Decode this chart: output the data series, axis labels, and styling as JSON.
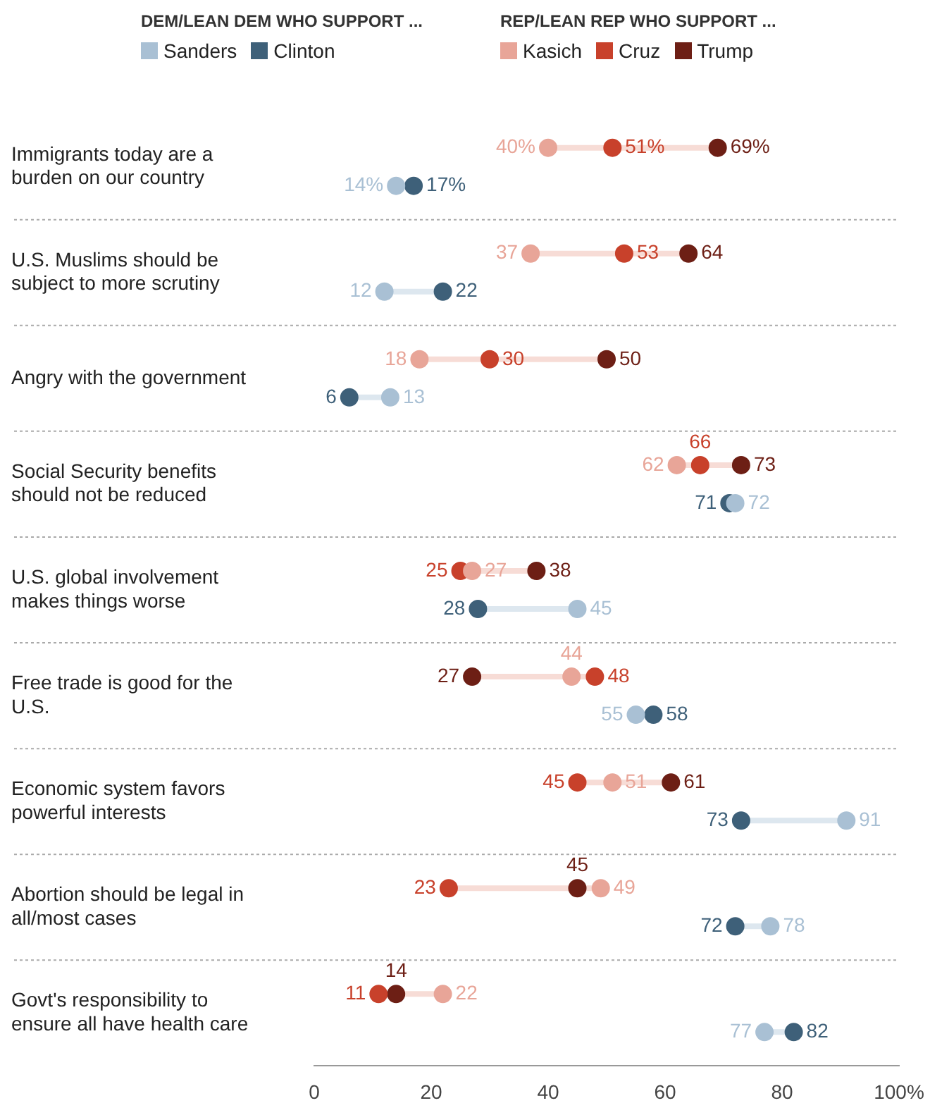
{
  "chart_data": {
    "type": "scatter",
    "orientation": "horizontal",
    "legend": "top",
    "legend_title": [
      "DEM/LEAN DEM WHO SUPPORT ...",
      "REP/LEAN REP WHO SUPPORT ..."
    ],
    "categories": [
      "Immigrants today are a burden on our country",
      "U.S. Muslims should be subject to more scrutiny",
      "Angry with the government",
      "Social Security benefits should not be reduced",
      "U.S. global involvement makes things worse",
      "Free trade is good for the U.S.",
      "Economic system favors powerful interests",
      "Abortion should be legal in all/most cases",
      "Govt's responsibility to ensure all have health care"
    ],
    "xlim": [
      0,
      100
    ],
    "xticks": [
      0,
      20,
      40,
      60,
      80,
      {
        "value": 100,
        "label": "100%"
      }
    ],
    "grid": false,
    "marker": "circle",
    "data_labels": true,
    "series": [
      {
        "name": "Sanders",
        "color": "#a9c0d4",
        "values": [
          14,
          12,
          13,
          72,
          45,
          55,
          91,
          78,
          77
        ],
        "value_labels": [
          "14%",
          "12",
          "13",
          "72",
          "45",
          "55",
          "91",
          "78",
          "77"
        ]
      },
      {
        "name": "Clinton",
        "color": "#3e6079",
        "values": [
          17,
          22,
          6,
          71,
          28,
          58,
          73,
          72,
          82
        ],
        "value_labels": [
          "17%",
          "22",
          "6",
          "71",
          "28",
          "58",
          "73",
          "72",
          "82"
        ]
      },
      {
        "name": "Kasich",
        "axis": "y2",
        "color": "#e8a598",
        "values": [
          40,
          37,
          18,
          62,
          27,
          44,
          51,
          49,
          22
        ],
        "value_labels": [
          "40%",
          "37",
          "18",
          "62",
          "27",
          "44",
          "51",
          "49",
          "22"
        ]
      },
      {
        "name": "Cruz",
        "axis": "y2",
        "color": "#c8412b",
        "values": [
          51,
          53,
          30,
          66,
          25,
          48,
          45,
          23,
          11
        ],
        "value_labels": [
          "51%",
          "53",
          "30",
          "66",
          "25",
          "48",
          "45",
          "23",
          "11"
        ]
      },
      {
        "name": "Trump",
        "axis": "y2",
        "color": "#6d1f15",
        "values": [
          69,
          64,
          50,
          73,
          38,
          27,
          61,
          45,
          14
        ],
        "value_labels": [
          "69%",
          "64",
          "50",
          "73",
          "38",
          "27",
          "61",
          "45",
          "14"
        ]
      }
    ]
  }
}
